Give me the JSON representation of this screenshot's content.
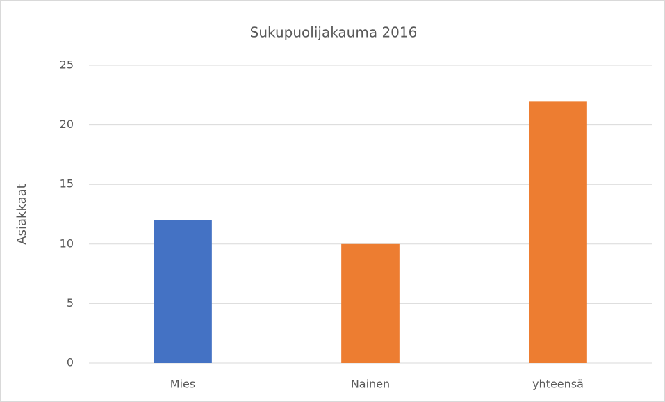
{
  "chart_data": {
    "type": "bar",
    "title": "Sukupuolijakauma 2016",
    "y_label": "Asiakkaat",
    "categories": [
      "Mies",
      "Nainen",
      "yhteensä"
    ],
    "values": [
      12,
      10,
      22
    ],
    "colors": [
      "#4472c4",
      "#ed7d31",
      "#ed7d31"
    ],
    "ylim": [
      0,
      25
    ],
    "yticks": [
      0,
      5,
      10,
      15,
      20,
      25
    ],
    "grid": true
  }
}
